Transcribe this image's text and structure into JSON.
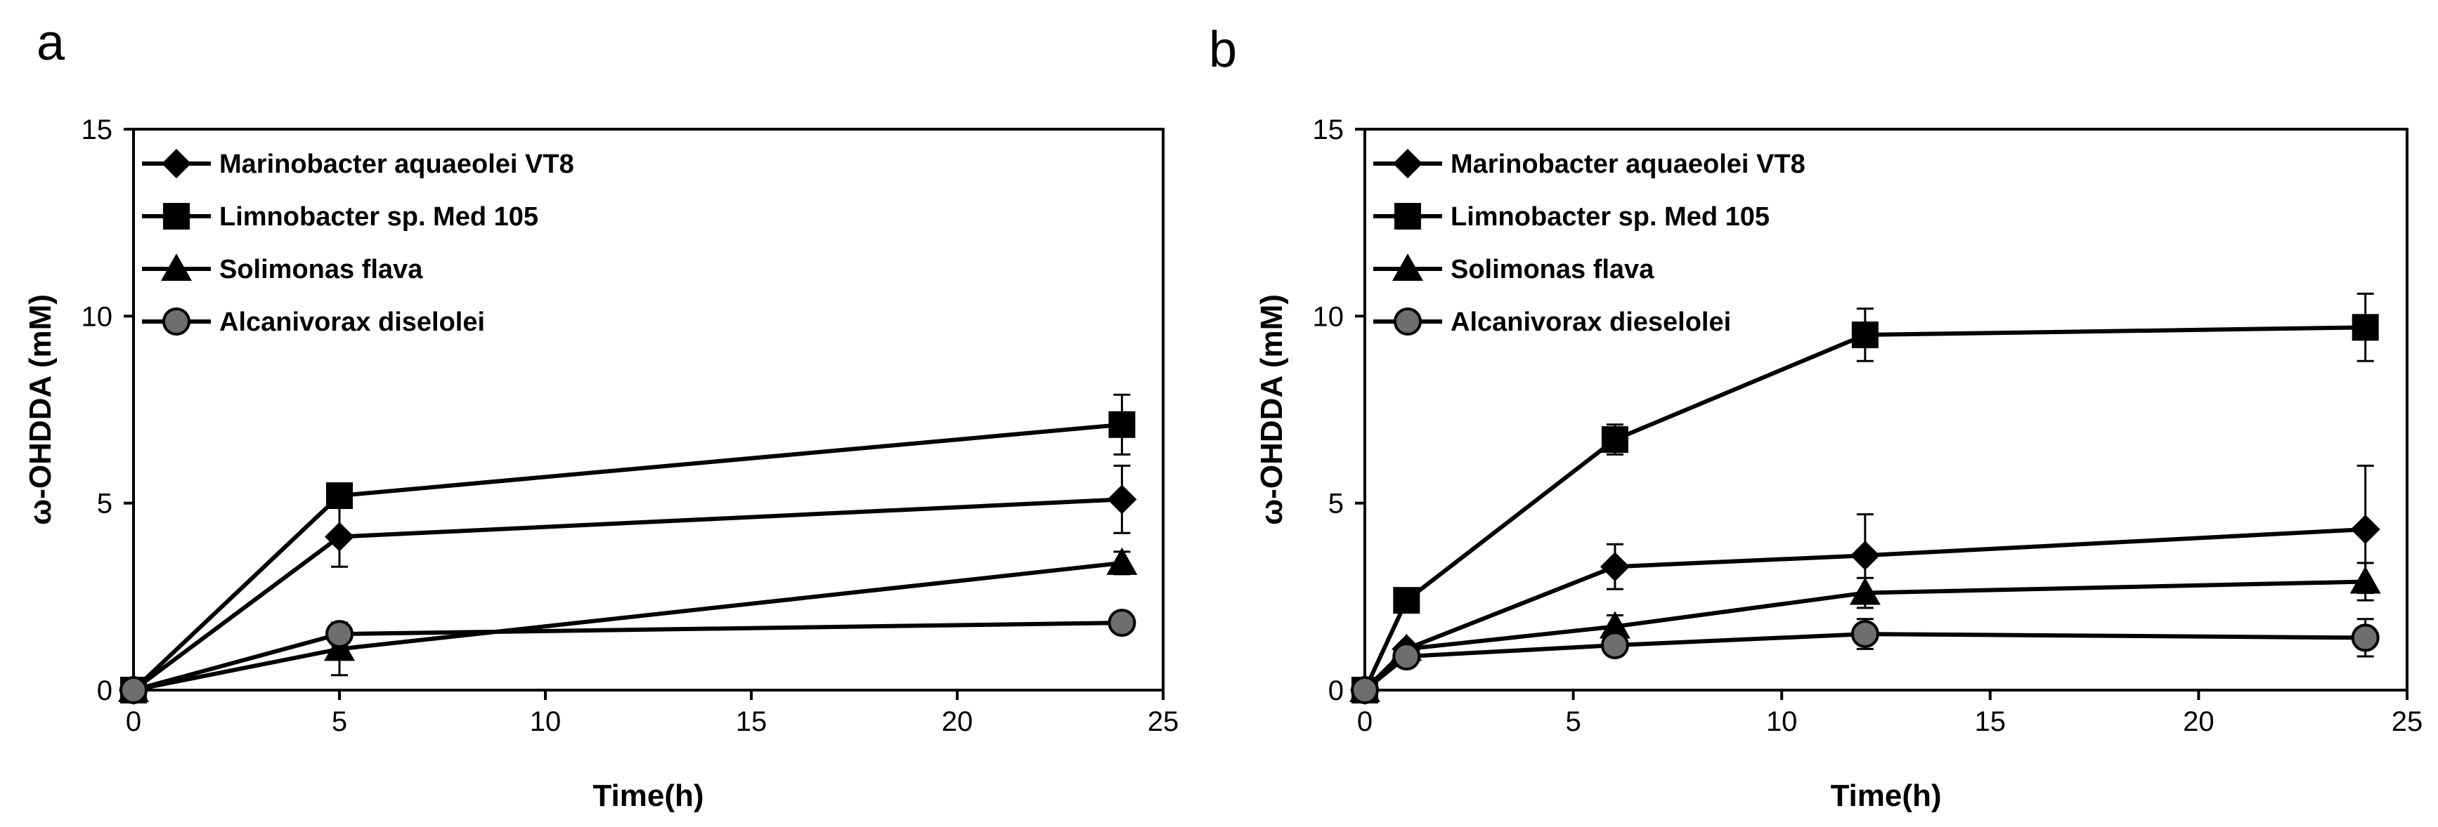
{
  "chart_data": [
    {
      "panel_label": "a",
      "type": "line",
      "xlabel": "Time(h)",
      "ylabel": "ω-OHDDA (mM)",
      "xlim": [
        0,
        25
      ],
      "ylim": [
        0,
        15
      ],
      "xticks": [
        0,
        5,
        10,
        15,
        20,
        25
      ],
      "yticks": [
        0,
        5,
        10,
        15
      ],
      "grid": false,
      "legend_position": "top-left",
      "series": [
        {
          "name": "Marinobacter aquaeolei VT8",
          "marker": "diamond",
          "x": [
            0,
            5,
            24
          ],
          "y": [
            0,
            4.1,
            5.1
          ],
          "err": [
            0,
            0.8,
            0.9
          ]
        },
        {
          "name": "Limnobacter sp. Med 105",
          "marker": "square",
          "x": [
            0,
            5,
            24
          ],
          "y": [
            0,
            5.2,
            7.1
          ],
          "err": [
            0,
            0.1,
            0.8
          ]
        },
        {
          "name": "Solimonas flava",
          "marker": "triangle",
          "x": [
            0,
            5,
            24
          ],
          "y": [
            0,
            1.1,
            3.4
          ],
          "err": [
            0,
            0.7,
            0.3
          ]
        },
        {
          "name": "Alcanivorax diselolei",
          "marker": "circle",
          "x": [
            0,
            5,
            24
          ],
          "y": [
            0,
            1.5,
            1.8
          ],
          "err": [
            0,
            0.3,
            0.1
          ]
        }
      ]
    },
    {
      "panel_label": "b",
      "type": "line",
      "xlabel": "Time(h)",
      "ylabel": "ω-OHDDA (mM)",
      "xlim": [
        0,
        25
      ],
      "ylim": [
        0,
        15
      ],
      "xticks": [
        0,
        5,
        10,
        15,
        20,
        25
      ],
      "yticks": [
        0,
        5,
        10,
        15
      ],
      "grid": false,
      "legend_position": "top-left",
      "series": [
        {
          "name": "Marinobacter aquaeolei VT8",
          "marker": "diamond",
          "x": [
            0,
            1,
            6,
            12,
            24
          ],
          "y": [
            0,
            1.1,
            3.3,
            3.6,
            4.3
          ],
          "err": [
            0,
            0.1,
            0.6,
            1.1,
            1.7
          ]
        },
        {
          "name": "Limnobacter sp. Med 105",
          "marker": "square",
          "x": [
            0,
            1,
            6,
            12,
            24
          ],
          "y": [
            0,
            2.4,
            6.7,
            9.5,
            9.7
          ],
          "err": [
            0,
            0.1,
            0.4,
            0.7,
            0.9
          ]
        },
        {
          "name": "Solimonas flava",
          "marker": "triangle",
          "x": [
            0,
            1,
            6,
            12,
            24
          ],
          "y": [
            0,
            1.1,
            1.7,
            2.6,
            2.9
          ],
          "err": [
            0,
            0.1,
            0.3,
            0.4,
            0.5
          ]
        },
        {
          "name": "Alcanivorax dieselolei",
          "marker": "circle",
          "x": [
            0,
            1,
            6,
            12,
            24
          ],
          "y": [
            0,
            0.9,
            1.2,
            1.5,
            1.4
          ],
          "err": [
            0,
            0.1,
            0.2,
            0.4,
            0.5
          ]
        }
      ]
    }
  ]
}
